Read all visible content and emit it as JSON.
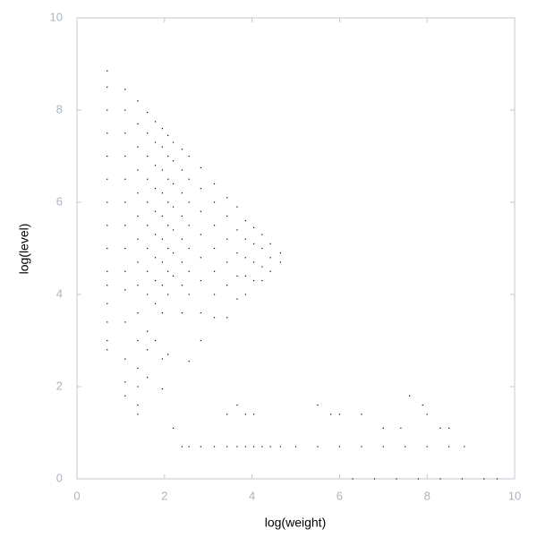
{
  "chart_data": {
    "type": "scatter",
    "xlabel": "log(weight)",
    "ylabel": "log(level)",
    "xlim": [
      0,
      10
    ],
    "ylim": [
      0,
      10
    ],
    "xticks": [
      0,
      2,
      4,
      6,
      8,
      10
    ],
    "yticks": [
      0,
      2,
      4,
      6,
      8,
      10
    ],
    "color": "#000000",
    "x": [
      0.69,
      0.69,
      0.69,
      0.69,
      0.69,
      0.69,
      0.69,
      0.69,
      0.69,
      0.69,
      0.69,
      0.69,
      0.69,
      0.69,
      0.69,
      1.1,
      1.1,
      1.1,
      1.1,
      1.1,
      1.1,
      1.1,
      1.1,
      1.1,
      1.1,
      1.1,
      1.1,
      1.1,
      1.1,
      1.39,
      1.39,
      1.39,
      1.39,
      1.39,
      1.39,
      1.39,
      1.39,
      1.39,
      1.39,
      1.39,
      1.39,
      1.39,
      1.39,
      1.39,
      1.61,
      1.61,
      1.61,
      1.61,
      1.61,
      1.61,
      1.61,
      1.61,
      1.61,
      1.61,
      1.61,
      1.61,
      1.79,
      1.79,
      1.79,
      1.79,
      1.79,
      1.79,
      1.79,
      1.79,
      1.79,
      1.79,
      1.95,
      1.95,
      1.95,
      1.95,
      1.95,
      1.95,
      1.95,
      1.95,
      1.95,
      1.95,
      1.95,
      2.08,
      2.08,
      2.08,
      2.08,
      2.08,
      2.08,
      2.08,
      2.08,
      2.08,
      2.2,
      2.2,
      2.2,
      2.2,
      2.2,
      2.2,
      2.2,
      2.2,
      2.4,
      2.4,
      2.4,
      2.4,
      2.4,
      2.4,
      2.4,
      2.4,
      2.4,
      2.56,
      2.56,
      2.56,
      2.56,
      2.56,
      2.56,
      2.56,
      2.56,
      2.56,
      2.83,
      2.83,
      2.83,
      2.83,
      2.83,
      2.83,
      2.83,
      2.83,
      2.83,
      3.14,
      3.14,
      3.14,
      3.14,
      3.14,
      3.14,
      3.14,
      3.14,
      3.43,
      3.43,
      3.43,
      3.43,
      3.43,
      3.43,
      3.43,
      3.43,
      3.66,
      3.66,
      3.66,
      3.66,
      3.66,
      3.66,
      3.66,
      3.85,
      3.85,
      3.85,
      3.85,
      3.85,
      3.85,
      3.85,
      4.04,
      4.04,
      4.04,
      4.04,
      4.04,
      4.04,
      4.23,
      4.23,
      4.23,
      4.23,
      4.23,
      4.42,
      4.42,
      4.42,
      4.42,
      4.65,
      4.65,
      4.65,
      5.0,
      5.5,
      6.0,
      6.5,
      7.0,
      7.5,
      8.0,
      8.5,
      8.85,
      6.3,
      6.8,
      7.3,
      7.8,
      8.3,
      8.8,
      9.3,
      9.6,
      5.5,
      5.8,
      6.0,
      6.5,
      7.0,
      7.4,
      8.0,
      8.3,
      8.5,
      7.6,
      7.9
    ],
    "y": [
      8.85,
      8.5,
      8.0,
      7.5,
      7.0,
      6.5,
      6.0,
      5.5,
      5.0,
      4.5,
      4.2,
      3.8,
      3.4,
      3.0,
      2.8,
      8.45,
      8.0,
      7.5,
      7.0,
      6.5,
      6.0,
      5.5,
      5.0,
      4.5,
      4.1,
      3.4,
      2.6,
      2.1,
      1.8,
      8.2,
      7.7,
      7.2,
      6.7,
      6.2,
      5.7,
      5.2,
      4.7,
      4.2,
      3.6,
      3.0,
      2.4,
      2.0,
      1.6,
      1.4,
      7.95,
      7.5,
      7.0,
      6.5,
      6.0,
      5.5,
      5.0,
      4.5,
      4.0,
      3.2,
      2.8,
      2.2,
      7.75,
      7.3,
      6.8,
      6.3,
      5.8,
      5.3,
      4.8,
      4.3,
      3.8,
      3.0,
      7.6,
      7.2,
      6.7,
      6.2,
      5.7,
      5.2,
      4.7,
      4.2,
      3.6,
      2.6,
      1.95,
      7.45,
      7.0,
      6.5,
      6.0,
      5.5,
      5.0,
      4.5,
      4.0,
      2.7,
      7.3,
      6.9,
      6.4,
      5.9,
      5.4,
      4.9,
      4.4,
      1.1,
      7.15,
      6.7,
      6.2,
      5.7,
      5.2,
      4.7,
      4.2,
      3.6,
      0.7,
      7.0,
      6.5,
      6.0,
      5.5,
      5.0,
      4.5,
      4.0,
      2.55,
      0.7,
      6.75,
      6.3,
      5.8,
      5.3,
      4.8,
      4.3,
      3.6,
      3.0,
      0.7,
      6.4,
      6.0,
      5.5,
      5.0,
      4.5,
      4.0,
      3.5,
      0.7,
      6.1,
      5.7,
      5.2,
      4.7,
      4.2,
      3.5,
      1.4,
      0.7,
      5.9,
      5.4,
      4.9,
      4.4,
      3.9,
      1.6,
      0.7,
      5.6,
      5.2,
      4.8,
      4.4,
      4.0,
      1.4,
      0.7,
      5.45,
      5.1,
      4.7,
      4.3,
      1.4,
      0.7,
      5.3,
      5.0,
      4.6,
      4.3,
      0.7,
      5.1,
      4.8,
      4.5,
      0.7,
      4.9,
      4.7,
      0.7,
      0.7,
      0.7,
      0.7,
      0.7,
      0.7,
      0.7,
      0.7,
      0.7,
      0.7,
      0,
      0,
      0,
      0,
      0,
      0,
      0,
      0,
      1.6,
      1.4,
      1.4,
      1.4,
      1.1,
      1.1,
      1.4,
      1.1,
      1.1,
      1.8,
      1.6
    ]
  }
}
